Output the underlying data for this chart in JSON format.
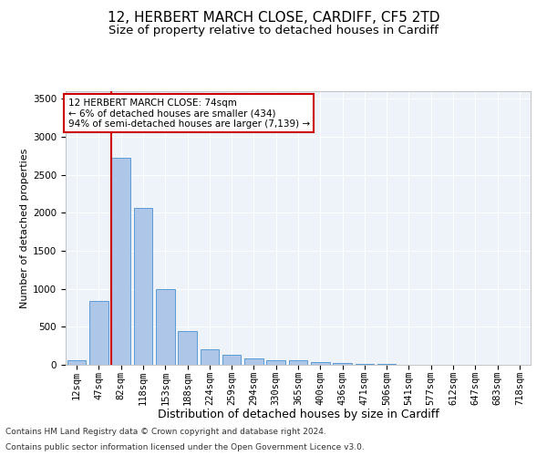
{
  "title1": "12, HERBERT MARCH CLOSE, CARDIFF, CF5 2TD",
  "title2": "Size of property relative to detached houses in Cardiff",
  "xlabel": "Distribution of detached houses by size in Cardiff",
  "ylabel": "Number of detached properties",
  "categories": [
    "12sqm",
    "47sqm",
    "82sqm",
    "118sqm",
    "153sqm",
    "188sqm",
    "224sqm",
    "259sqm",
    "294sqm",
    "330sqm",
    "365sqm",
    "400sqm",
    "436sqm",
    "471sqm",
    "506sqm",
    "541sqm",
    "577sqm",
    "612sqm",
    "647sqm",
    "683sqm",
    "718sqm"
  ],
  "values": [
    55,
    840,
    2720,
    2060,
    1000,
    450,
    200,
    130,
    80,
    60,
    55,
    35,
    20,
    10,
    8,
    5,
    3,
    2,
    1,
    1,
    1
  ],
  "bar_color": "#aec6e8",
  "bar_edge_color": "#5b9bd5",
  "highlight_color": "#cc0000",
  "vline_bar_index": 2,
  "annotation_text": "12 HERBERT MARCH CLOSE: 74sqm\n← 6% of detached houses are smaller (434)\n94% of semi-detached houses are larger (7,139) →",
  "annotation_box_color": "#ffffff",
  "annotation_box_edge_color": "#cc0000",
  "ylim": [
    0,
    3600
  ],
  "yticks": [
    0,
    500,
    1000,
    1500,
    2000,
    2500,
    3000,
    3500
  ],
  "footer1": "Contains HM Land Registry data © Crown copyright and database right 2024.",
  "footer2": "Contains public sector information licensed under the Open Government Licence v3.0.",
  "background_color": "#eef2f9",
  "grid_color": "#ffffff",
  "title1_fontsize": 11,
  "title2_fontsize": 9.5,
  "xlabel_fontsize": 9,
  "ylabel_fontsize": 8,
  "tick_fontsize": 7.5,
  "footer_fontsize": 6.5,
  "annotation_fontsize": 7.5
}
